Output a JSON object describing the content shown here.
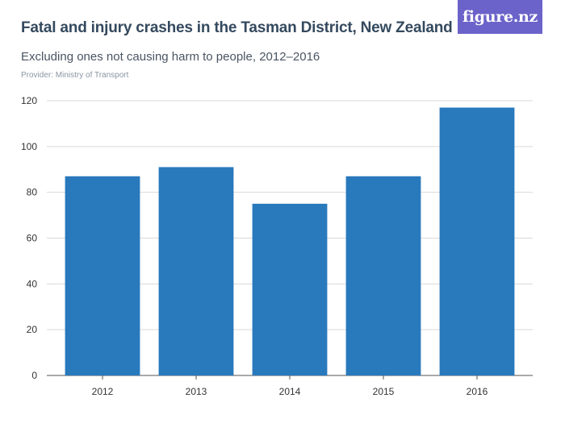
{
  "header": {
    "title": "Fatal and injury crashes in the Tasman District, New Zealand",
    "subtitle": "Excluding ones not causing harm to people, 2012–2016",
    "provider": "Provider: Ministry of Transport"
  },
  "logo": {
    "text": "figure.nz",
    "color": "#6b63c9"
  },
  "chart_data": {
    "type": "bar",
    "categories": [
      "2012",
      "2013",
      "2014",
      "2015",
      "2016"
    ],
    "values": [
      87,
      91,
      75,
      87,
      117
    ],
    "ylim": [
      0,
      120
    ],
    "yticks": [
      0,
      20,
      40,
      60,
      80,
      100,
      120
    ],
    "grid": true,
    "bar_color": "#2979bd",
    "xlabel": "",
    "ylabel": ""
  }
}
